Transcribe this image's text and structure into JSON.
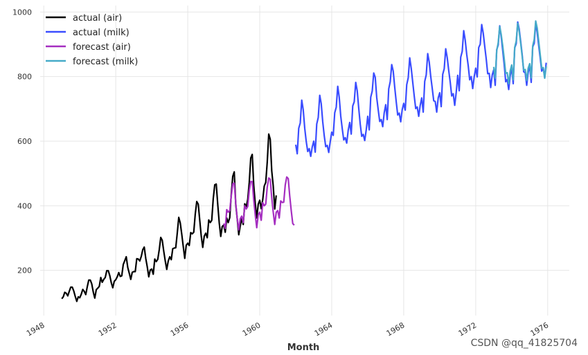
{
  "chart_data": {
    "type": "line",
    "title": "",
    "xlabel": "Month",
    "ylabel": "",
    "xlim": [
      1947.8,
      1977.2
    ],
    "ylim": [
      60,
      1020
    ],
    "grid": true,
    "legend_position": "top-left",
    "x_ticks": [
      1948,
      1952,
      1956,
      1960,
      1964,
      1968,
      1972,
      1976
    ],
    "x_tick_labels": [
      "1948",
      "1952",
      "1956",
      "1960",
      "1964",
      "1968",
      "1972",
      "1976"
    ],
    "y_ticks": [
      200,
      400,
      600,
      800,
      1000
    ],
    "y_tick_labels": [
      "200",
      "400",
      "600",
      "800",
      "1000"
    ],
    "series": [
      {
        "name": "actual (air)",
        "color": "#000000",
        "start": 1949.0,
        "step": 0.0833333,
        "values": [
          112,
          118,
          132,
          129,
          121,
          135,
          148,
          148,
          136,
          119,
          104,
          118,
          115,
          126,
          141,
          135,
          125,
          149,
          170,
          170,
          158,
          133,
          114,
          140,
          145,
          150,
          178,
          163,
          172,
          178,
          199,
          199,
          184,
          162,
          146,
          166,
          171,
          180,
          193,
          181,
          183,
          218,
          230,
          242,
          209,
          191,
          172,
          194,
          196,
          196,
          236,
          235,
          229,
          243,
          264,
          272,
          237,
          211,
          180,
          201,
          204,
          188,
          235,
          227,
          234,
          264,
          302,
          293,
          259,
          229,
          203,
          229,
          242,
          233,
          267,
          269,
          270,
          315,
          364,
          347,
          312,
          274,
          237,
          278,
          284,
          277,
          317,
          313,
          318,
          374,
          413,
          405,
          355,
          306,
          271,
          306,
          315,
          301,
          356,
          348,
          355,
          422,
          465,
          467,
          404,
          347,
          305,
          336,
          340,
          318,
          362,
          348,
          363,
          435,
          491,
          505,
          404,
          359,
          310,
          337,
          360,
          342,
          406,
          396,
          420,
          472,
          548,
          559,
          463,
          407,
          362,
          405,
          417,
          391,
          419,
          461,
          472,
          535,
          622,
          606,
          508,
          461,
          390,
          432
        ]
      },
      {
        "name": "actual (milk)",
        "color": "#3a4dff",
        "start": 1962.0,
        "step": 0.0833333,
        "values": [
          589,
          561,
          640,
          656,
          727,
          697,
          640,
          599,
          568,
          577,
          553,
          582,
          600,
          566,
          653,
          673,
          742,
          716,
          660,
          617,
          583,
          587,
          565,
          598,
          628,
          618,
          688,
          705,
          770,
          736,
          678,
          639,
          604,
          611,
          594,
          634,
          658,
          622,
          709,
          722,
          782,
          756,
          702,
          653,
          615,
          621,
          602,
          635,
          677,
          635,
          736,
          755,
          811,
          798,
          735,
          697,
          661,
          667,
          645,
          688,
          713,
          667,
          762,
          784,
          837,
          817,
          767,
          722,
          681,
          687,
          660,
          698,
          717,
          696,
          775,
          796,
          858,
          826,
          783,
          740,
          701,
          706,
          677,
          711,
          734,
          690,
          785,
          805,
          871,
          845,
          801,
          764,
          725,
          723,
          690,
          734,
          750,
          707,
          807,
          824,
          886,
          859,
          819,
          783,
          740,
          747,
          711,
          751,
          804,
          756,
          860,
          878,
          942,
          913,
          869,
          834,
          790,
          800,
          763,
          800,
          826,
          799,
          890,
          900,
          961,
          935,
          894,
          855,
          809,
          810,
          766,
          805,
          821,
          773,
          883,
          898,
          957,
          924,
          881,
          837,
          784,
          791,
          760,
          802,
          828,
          778,
          889,
          902,
          969,
          947,
          908,
          867,
          815,
          812,
          773,
          813,
          834,
          782,
          892,
          903,
          966,
          937,
          896,
          858,
          817,
          827,
          797,
          843
        ]
      },
      {
        "name": "forecast (air)",
        "color": "#a52ec0",
        "start": 1958.0,
        "step": 0.0833333,
        "values": [
          345,
          330,
          388,
          380,
          385,
          430,
          468,
          470,
          408,
          360,
          325,
          360,
          368,
          348,
          400,
          390,
          398,
          447,
          475,
          475,
          418,
          372,
          332,
          372,
          380,
          355,
          410,
          400,
          405,
          458,
          486,
          482,
          425,
          380,
          342,
          380,
          385,
          362,
          415,
          410,
          411,
          464,
          489,
          484,
          430,
          385,
          345,
          340
        ]
      },
      {
        "name": "forecast (milk)",
        "color": "#45aac8",
        "start": 1973.0,
        "step": 0.0833333,
        "values": [
          830,
          795,
          880,
          905,
          955,
          930,
          895,
          855,
          810,
          812,
          778,
          818,
          836,
          790,
          890,
          910,
          965,
          940,
          903,
          862,
          820,
          822,
          788,
          826,
          840,
          796,
          895,
          915,
          972,
          950,
          910,
          868,
          826,
          828,
          795,
          832
        ]
      }
    ]
  },
  "watermark": {
    "text": "CSDN @qq_41825704"
  }
}
